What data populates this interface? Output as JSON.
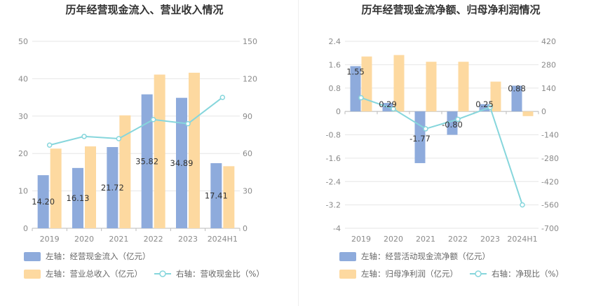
{
  "colors": {
    "bar_primary": "#8eabdc",
    "bar_secondary": "#fdd9a0",
    "line": "#86d6dc",
    "grid": "#e6e6e6",
    "axis": "#bbbbbb",
    "divider": "#eeeeee"
  },
  "chart_data": [
    {
      "type": "bar",
      "title": "历年经营现金流入、营业收入情况",
      "categories": [
        "2019",
        "2020",
        "2021",
        "2022",
        "2023",
        "2024H1"
      ],
      "left_axis": {
        "ylim": [
          0,
          50
        ],
        "ticks": [
          "0",
          "10",
          "20",
          "30",
          "40",
          "50"
        ]
      },
      "right_axis": {
        "ylim": [
          0,
          150
        ],
        "ticks": [
          "0",
          "30",
          "60",
          "90",
          "120",
          "150"
        ]
      },
      "series": [
        {
          "name": "左轴：经营现金流入（亿元）",
          "kind": "bar",
          "axis": "left",
          "color_key": "bar_primary",
          "values": [
            14.2,
            16.13,
            21.72,
            35.82,
            34.89,
            17.41
          ],
          "labels": [
            "14.20",
            "16.13",
            "21.72",
            "35.82",
            "34.89",
            "17.41"
          ]
        },
        {
          "name": "左轴：营业总收入（亿元）",
          "kind": "bar",
          "axis": "left",
          "color_key": "bar_secondary",
          "values": [
            21.3,
            21.9,
            30.2,
            41.1,
            41.6,
            16.6
          ]
        },
        {
          "name": "右轴：营收现金比（%）",
          "kind": "line",
          "axis": "right",
          "color_key": "line",
          "values": [
            66.7,
            73.7,
            71.9,
            87.2,
            83.9,
            105.0
          ]
        }
      ]
    },
    {
      "type": "bar",
      "title": "历年经营现金流净额、归母净利润情况",
      "categories": [
        "2019",
        "2020",
        "2021",
        "2022",
        "2023",
        "2024H1"
      ],
      "left_axis": {
        "ylim": [
          -4,
          2.4
        ],
        "ticks": [
          "-4",
          "-3.2",
          "-2.4",
          "-1.6",
          "-0.8",
          "0",
          "0.8",
          "1.6",
          "2.4"
        ]
      },
      "right_axis": {
        "ylim": [
          -700,
          420
        ],
        "ticks": [
          "-700",
          "-560",
          "-420",
          "-280",
          "-140",
          "0",
          "140",
          "280",
          "420"
        ]
      },
      "series": [
        {
          "name": "左轴：经营活动现金流净额（亿元）",
          "kind": "bar",
          "axis": "left",
          "color_key": "bar_primary",
          "values": [
            1.55,
            0.29,
            -1.77,
            -0.8,
            0.25,
            0.88
          ],
          "labels": [
            "1.55",
            "0.29",
            "-1.77",
            "-0.80",
            "0.25",
            "0.88"
          ]
        },
        {
          "name": "左轴：归母净利润（亿元）",
          "kind": "bar",
          "axis": "left",
          "color_key": "bar_secondary",
          "values": [
            1.88,
            1.93,
            1.7,
            1.7,
            1.02,
            -0.16
          ]
        },
        {
          "name": "右轴：净现比（%）",
          "kind": "line",
          "axis": "right",
          "color_key": "line",
          "values": [
            82,
            15,
            -104,
            -47,
            25,
            -560
          ]
        }
      ]
    }
  ]
}
